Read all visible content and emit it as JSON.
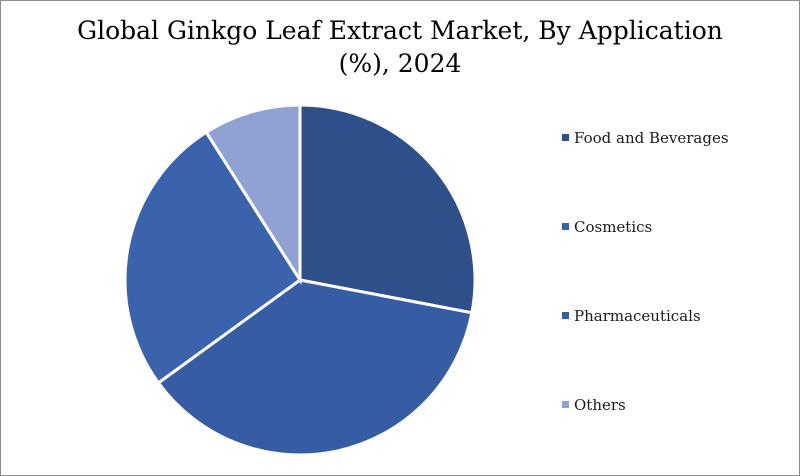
{
  "chart_data": {
    "type": "pie",
    "title_line1": "Global Ginkgo Leaf Extract Market, By Application",
    "title_line2": "(%), 2024",
    "slices": [
      {
        "label": "Food and Beverages",
        "value": 28,
        "color": "#2f4f8a"
      },
      {
        "label": "Pharmaceuticals",
        "value": 37,
        "color": "#365da4"
      },
      {
        "label": "Cosmetics",
        "value": 26,
        "color": "#3a63ab"
      },
      {
        "label": "Others",
        "value": 9,
        "color": "#8fa2d3"
      }
    ],
    "legend": [
      {
        "label": "Food and Beverages",
        "color": "#2f4f8a"
      },
      {
        "label": "Cosmetics",
        "color": "#3a63ab"
      },
      {
        "label": "Pharmaceuticals",
        "color": "#365da4"
      },
      {
        "label": "Others",
        "color": "#8fa2d3"
      }
    ],
    "legend_position": "right"
  }
}
